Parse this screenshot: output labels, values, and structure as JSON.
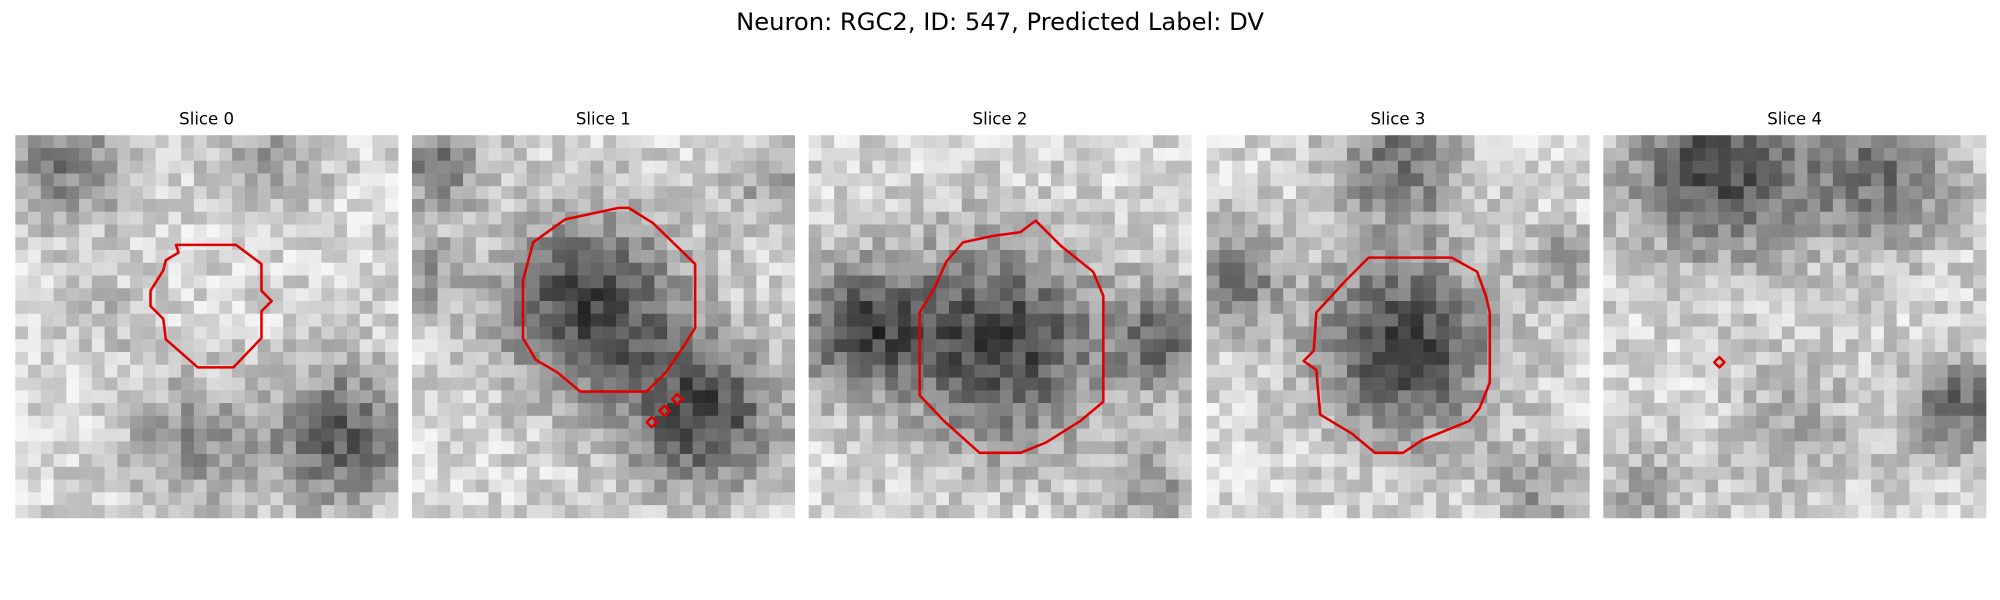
{
  "title": "Neuron: RGC2, ID: 547, Predicted Label: DV",
  "panels": [
    {
      "title": "Slice 0"
    },
    {
      "title": "Slice 1"
    },
    {
      "title": "Slice 2"
    },
    {
      "title": "Slice 3"
    },
    {
      "title": "Slice 4"
    }
  ]
}
